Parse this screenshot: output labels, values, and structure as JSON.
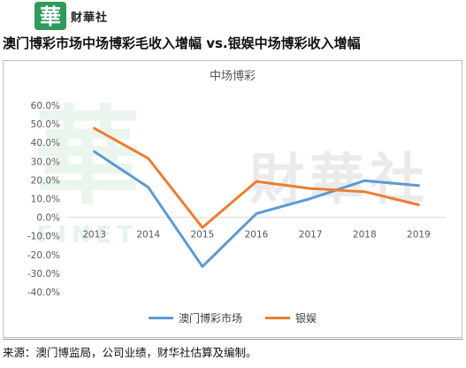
{
  "header": {
    "logo_char": "華",
    "logo_text": "财華社"
  },
  "headline": "澳门博彩市场中场博彩毛收入增幅 vs.银娱中场博彩收入增幅",
  "watermark": {
    "big": "財華社",
    "small": "FINET"
  },
  "colors": {
    "macau": "#5b9bd5",
    "galaxy": "#ed7d31",
    "logo": "#2f9a5b"
  },
  "chart_data": {
    "type": "line",
    "title": "中场博彩",
    "categories": [
      "2013",
      "2014",
      "2015",
      "2016",
      "2017",
      "2018",
      "2019"
    ],
    "series": [
      {
        "name": "澳门博彩市场",
        "values": [
          35.2,
          16.0,
          -26.4,
          2.0,
          10.0,
          19.6,
          17.0
        ]
      },
      {
        "name": "银娱",
        "values": [
          47.7,
          31.5,
          -5.5,
          19.2,
          15.4,
          13.7,
          6.7
        ]
      }
    ],
    "ylim": [
      -40,
      60
    ],
    "ytick_step": 10,
    "ytick_labels": [
      "60.0%",
      "50.0%",
      "40.0%",
      "30.0%",
      "20.0%",
      "10.0%",
      "0.0%",
      "-10.0%",
      "-20.0%",
      "-30.0%",
      "-40.0%"
    ],
    "grid": false,
    "legend": "bottom"
  },
  "source_text": "来源：澳门博监局，公司业绩，财华社估算及编制。"
}
